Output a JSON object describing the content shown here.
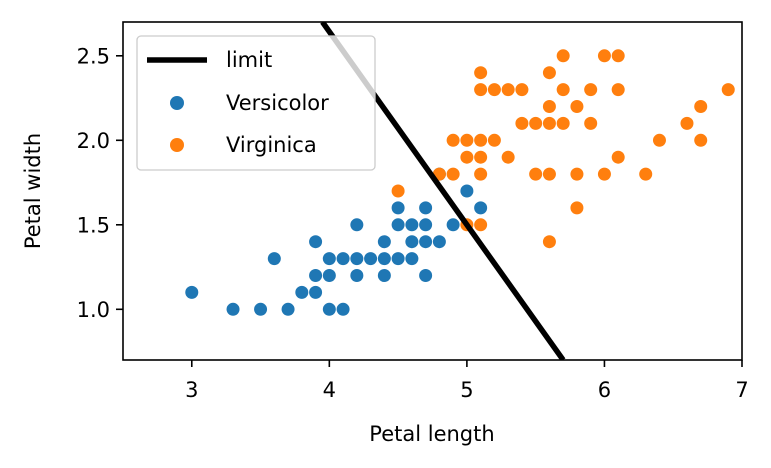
{
  "chart_data": {
    "type": "scatter",
    "xlabel": "Petal length",
    "ylabel": "Petal width",
    "xlim": [
      2.5,
      7.0
    ],
    "ylim": [
      0.7,
      2.7
    ],
    "xticks": [
      "3",
      "4",
      "5",
      "6",
      "7"
    ],
    "xtick_values": [
      3,
      4,
      5,
      6,
      7
    ],
    "yticks": [
      "1.0",
      "1.5",
      "2.0",
      "2.5"
    ],
    "ytick_values": [
      1.0,
      1.5,
      2.0,
      2.5
    ],
    "grid": false,
    "legend": {
      "placement": "top-left",
      "entries": [
        "limit",
        "Versicolor",
        "Virginica"
      ]
    },
    "line": {
      "name": "limit",
      "color": "#000000",
      "points": [
        [
          3.95,
          2.7
        ],
        [
          5.7,
          0.7
        ]
      ]
    },
    "series": [
      {
        "name": "Versicolor",
        "color": "#1f77b4",
        "points": [
          [
            3.0,
            1.1
          ],
          [
            3.3,
            1.0
          ],
          [
            3.5,
            1.0
          ],
          [
            3.6,
            1.3
          ],
          [
            3.7,
            1.0
          ],
          [
            3.8,
            1.1
          ],
          [
            3.9,
            1.1
          ],
          [
            3.9,
            1.2
          ],
          [
            3.9,
            1.4
          ],
          [
            4.0,
            1.0
          ],
          [
            4.0,
            1.2
          ],
          [
            4.0,
            1.3
          ],
          [
            4.1,
            1.0
          ],
          [
            4.1,
            1.3
          ],
          [
            4.2,
            1.2
          ],
          [
            4.2,
            1.3
          ],
          [
            4.2,
            1.5
          ],
          [
            4.3,
            1.3
          ],
          [
            4.4,
            1.2
          ],
          [
            4.4,
            1.3
          ],
          [
            4.4,
            1.4
          ],
          [
            4.5,
            1.3
          ],
          [
            4.5,
            1.5
          ],
          [
            4.5,
            1.6
          ],
          [
            4.6,
            1.3
          ],
          [
            4.6,
            1.4
          ],
          [
            4.6,
            1.5
          ],
          [
            4.7,
            1.2
          ],
          [
            4.7,
            1.4
          ],
          [
            4.7,
            1.5
          ],
          [
            4.7,
            1.6
          ],
          [
            4.8,
            1.4
          ],
          [
            4.8,
            1.8
          ],
          [
            4.9,
            1.5
          ],
          [
            5.0,
            1.7
          ],
          [
            5.1,
            1.6
          ]
        ]
      },
      {
        "name": "Virginica",
        "color": "#ff7f0e",
        "points": [
          [
            4.5,
            1.7
          ],
          [
            4.8,
            1.8
          ],
          [
            4.9,
            1.8
          ],
          [
            4.9,
            2.0
          ],
          [
            5.0,
            1.5
          ],
          [
            5.0,
            1.9
          ],
          [
            5.0,
            2.0
          ],
          [
            5.1,
            1.5
          ],
          [
            5.1,
            1.8
          ],
          [
            5.1,
            1.9
          ],
          [
            5.1,
            2.0
          ],
          [
            5.1,
            2.3
          ],
          [
            5.1,
            2.4
          ],
          [
            5.2,
            2.0
          ],
          [
            5.2,
            2.3
          ],
          [
            5.3,
            1.9
          ],
          [
            5.3,
            2.3
          ],
          [
            5.4,
            2.1
          ],
          [
            5.4,
            2.3
          ],
          [
            5.5,
            1.8
          ],
          [
            5.5,
            2.1
          ],
          [
            5.6,
            1.4
          ],
          [
            5.6,
            1.8
          ],
          [
            5.6,
            2.1
          ],
          [
            5.6,
            2.2
          ],
          [
            5.6,
            2.4
          ],
          [
            5.7,
            2.1
          ],
          [
            5.7,
            2.3
          ],
          [
            5.7,
            2.5
          ],
          [
            5.8,
            1.6
          ],
          [
            5.8,
            1.8
          ],
          [
            5.8,
            2.2
          ],
          [
            5.9,
            2.1
          ],
          [
            5.9,
            2.3
          ],
          [
            6.0,
            1.8
          ],
          [
            6.0,
            2.5
          ],
          [
            6.1,
            1.9
          ],
          [
            6.1,
            2.3
          ],
          [
            6.1,
            2.5
          ],
          [
            6.3,
            1.8
          ],
          [
            6.4,
            2.0
          ],
          [
            6.6,
            2.1
          ],
          [
            6.7,
            2.0
          ],
          [
            6.7,
            2.2
          ],
          [
            6.9,
            2.3
          ]
        ]
      }
    ]
  }
}
